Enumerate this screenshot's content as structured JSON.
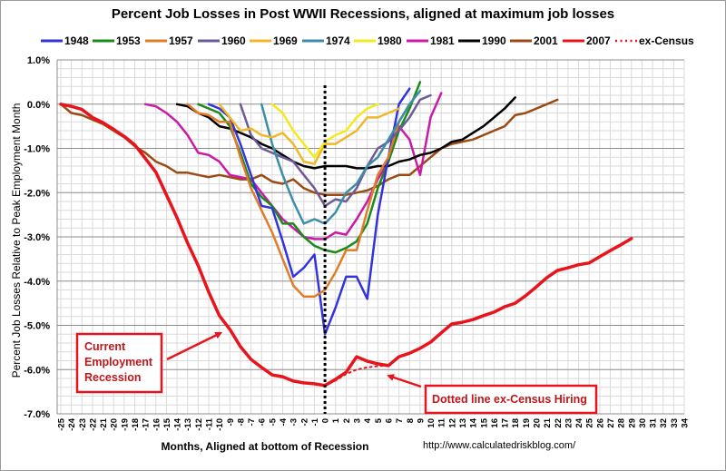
{
  "chart_data": {
    "type": "line",
    "title": "Percent Job Losses in Post WWII Recessions, aligned at maximum job losses",
    "xlabel": "Months, Aligned at bottom of Recession",
    "ylabel": "Percent Job Losses Relative to Peak Employment Month",
    "xlim": [
      -25,
      34
    ],
    "ylim": [
      -7.0,
      1.0
    ],
    "yticks": [
      "1.0%",
      "0.0%",
      "-1.0%",
      "-2.0%",
      "-3.0%",
      "-4.0%",
      "-5.0%",
      "-6.0%",
      "-7.0%"
    ],
    "ytick_values": [
      1,
      0,
      -1,
      -2,
      -3,
      -4,
      -5,
      -6,
      -7
    ],
    "xticks": [
      -25,
      -24,
      -23,
      -22,
      -21,
      -20,
      -19,
      -18,
      -17,
      -16,
      -15,
      -14,
      -13,
      -12,
      -11,
      -10,
      -9,
      -8,
      -7,
      -6,
      -5,
      -4,
      -3,
      -2,
      -1,
      0,
      1,
      2,
      3,
      4,
      5,
      6,
      7,
      8,
      9,
      10,
      11,
      12,
      13,
      14,
      15,
      16,
      17,
      18,
      19,
      20,
      21,
      22,
      23,
      24,
      25,
      26,
      27,
      28,
      29,
      30,
      31,
      32,
      33,
      34
    ],
    "grid": true,
    "legend_position": "top",
    "vertical_marker": {
      "x": 0,
      "style": "dotted",
      "color": "#000000"
    },
    "series": [
      {
        "name": "1948",
        "color": "#3333dd",
        "x_start": -11,
        "values": [
          0.0,
          -0.1,
          -0.3,
          -0.9,
          -1.6,
          -2.3,
          -2.35,
          -3.1,
          -3.9,
          -3.7,
          -3.4,
          -5.2,
          -4.6,
          -3.9,
          -3.9,
          -4.4,
          -2.5,
          -1.2,
          0.0,
          0.35
        ]
      },
      {
        "name": "1953",
        "color": "#1a8a1a",
        "x_start": -12,
        "values": [
          0.0,
          -0.1,
          -0.2,
          -0.5,
          -1.1,
          -1.8,
          -2.1,
          -2.3,
          -2.7,
          -2.7,
          -3.0,
          -3.2,
          -3.3,
          -3.35,
          -3.25,
          -3.1,
          -2.7,
          -1.9,
          -1.3,
          -0.6,
          -0.1,
          0.5
        ]
      },
      {
        "name": "1957",
        "color": "#e07b28",
        "x_start": -13,
        "values": [
          0.0,
          -0.2,
          -0.25,
          -0.4,
          -0.4,
          -1.2,
          -1.9,
          -2.4,
          -2.9,
          -3.5,
          -4.1,
          -4.35,
          -4.35,
          -4.2,
          -3.8,
          -3.3,
          -3.3,
          -2.4,
          -1.6,
          -1.2,
          -0.4,
          0.0
        ]
      },
      {
        "name": "1960",
        "color": "#6e5a96",
        "x_start": -8,
        "values": [
          0.0,
          -0.7,
          -1.0,
          -1.1,
          -1.2,
          -1.3,
          -1.6,
          -1.9,
          -2.3,
          -2.15,
          -2.2,
          -1.9,
          -1.4,
          -1.0,
          -0.85,
          -0.6,
          -0.3,
          0.1,
          0.2
        ]
      },
      {
        "name": "1969",
        "color": "#f0b828",
        "x_start": -10,
        "values": [
          0.0,
          -0.3,
          -0.6,
          -0.55,
          -0.7,
          -0.75,
          -0.65,
          -0.9,
          -1.3,
          -1.35,
          -0.9,
          -0.9,
          -0.75,
          -0.6,
          -0.3,
          -0.3,
          -0.2,
          -0.1
        ]
      },
      {
        "name": "1974",
        "color": "#3c8ea8",
        "x_start": -6,
        "values": [
          0.0,
          -0.9,
          -1.6,
          -2.2,
          -2.7,
          -2.6,
          -2.7,
          -2.45,
          -2.0,
          -1.8,
          -1.4,
          -1.2,
          -0.8,
          -0.4,
          0.0,
          0.3
        ]
      },
      {
        "name": "1980",
        "color": "#f2ea1a",
        "x_start": -5,
        "values": [
          0.0,
          -0.2,
          -0.6,
          -0.9,
          -1.2,
          -0.85,
          -0.7,
          -0.6,
          -0.3,
          -0.1,
          0.0
        ]
      },
      {
        "name": "1981",
        "color": "#cc1aa8",
        "x_start": -17,
        "values": [
          0.0,
          -0.05,
          -0.2,
          -0.4,
          -0.7,
          -1.1,
          -1.15,
          -1.3,
          -1.6,
          -1.65,
          -1.7,
          -2.0,
          -2.3,
          -2.6,
          -2.8,
          -3.0,
          -3.05,
          -3.05,
          -2.9,
          -2.95,
          -2.6,
          -2.2,
          -1.7,
          -1.3,
          -0.5,
          -0.8,
          -1.6,
          -0.3,
          0.25
        ]
      },
      {
        "name": "1990",
        "color": "#000000",
        "x_start": -14,
        "values": [
          0.0,
          -0.05,
          -0.2,
          -0.3,
          -0.5,
          -0.55,
          -0.65,
          -0.75,
          -0.9,
          -1.0,
          -1.15,
          -1.3,
          -1.4,
          -1.45,
          -1.4,
          -1.4,
          -1.4,
          -1.45,
          -1.45,
          -1.4,
          -1.4,
          -1.3,
          -1.25,
          -1.15,
          -1.1,
          -1.0,
          -0.85,
          -0.8,
          -0.65,
          -0.5,
          -0.3,
          -0.1,
          0.15
        ]
      },
      {
        "name": "2001",
        "color": "#9c4a14",
        "x_start": -25,
        "values": [
          0.0,
          -0.2,
          -0.25,
          -0.35,
          -0.45,
          -0.6,
          -0.75,
          -0.95,
          -1.1,
          -1.3,
          -1.4,
          -1.55,
          -1.55,
          -1.6,
          -1.65,
          -1.6,
          -1.65,
          -1.7,
          -1.7,
          -1.6,
          -1.75,
          -1.8,
          -1.7,
          -1.9,
          -2.0,
          -2.05,
          -2.05,
          -2.05,
          -2.0,
          -1.95,
          -1.85,
          -1.7,
          -1.6,
          -1.6,
          -1.4,
          -1.2,
          -1.0,
          -0.9,
          -0.85,
          -0.8,
          -0.7,
          -0.6,
          -0.5,
          -0.25,
          -0.2,
          -0.1,
          0.0,
          0.1
        ]
      },
      {
        "name": "2007",
        "color": "#e8141c",
        "x_start": -25,
        "values": [
          0.0,
          -0.05,
          -0.12,
          -0.3,
          -0.42,
          -0.57,
          -0.73,
          -0.92,
          -1.23,
          -1.54,
          -2.05,
          -2.57,
          -3.14,
          -3.65,
          -4.25,
          -4.78,
          -5.09,
          -5.48,
          -5.77,
          -5.95,
          -6.12,
          -6.16,
          -6.26,
          -6.3,
          -6.32,
          -6.36,
          -6.22,
          -6.06,
          -5.71,
          -5.81,
          -5.87,
          -5.91,
          -5.71,
          -5.63,
          -5.52,
          -5.38,
          -5.17,
          -4.97,
          -4.93,
          -4.87,
          -4.78,
          -4.7,
          -4.58,
          -4.5,
          -4.33,
          -4.13,
          -3.92,
          -3.76,
          -3.7,
          -3.63,
          -3.59,
          -3.45,
          -3.31,
          -3.18,
          -3.04
        ]
      },
      {
        "name": "ex-Census",
        "color": "#e8141c",
        "style": "dotted",
        "x_start": 0,
        "values": [
          -6.36,
          -6.25,
          -6.1,
          -6.0,
          -5.95,
          -5.92,
          -5.91
        ]
      }
    ],
    "annotations": [
      {
        "text_lines": [
          "Current",
          "Employment",
          "Recession"
        ],
        "points_to": {
          "x": -9,
          "y": -5.09
        }
      },
      {
        "text_lines": [
          "Dotted line ex-Census Hiring"
        ],
        "points_to": {
          "x": 4,
          "y": -6.0
        }
      }
    ],
    "source_text": "http://www.calculatedriskblog.com/"
  }
}
